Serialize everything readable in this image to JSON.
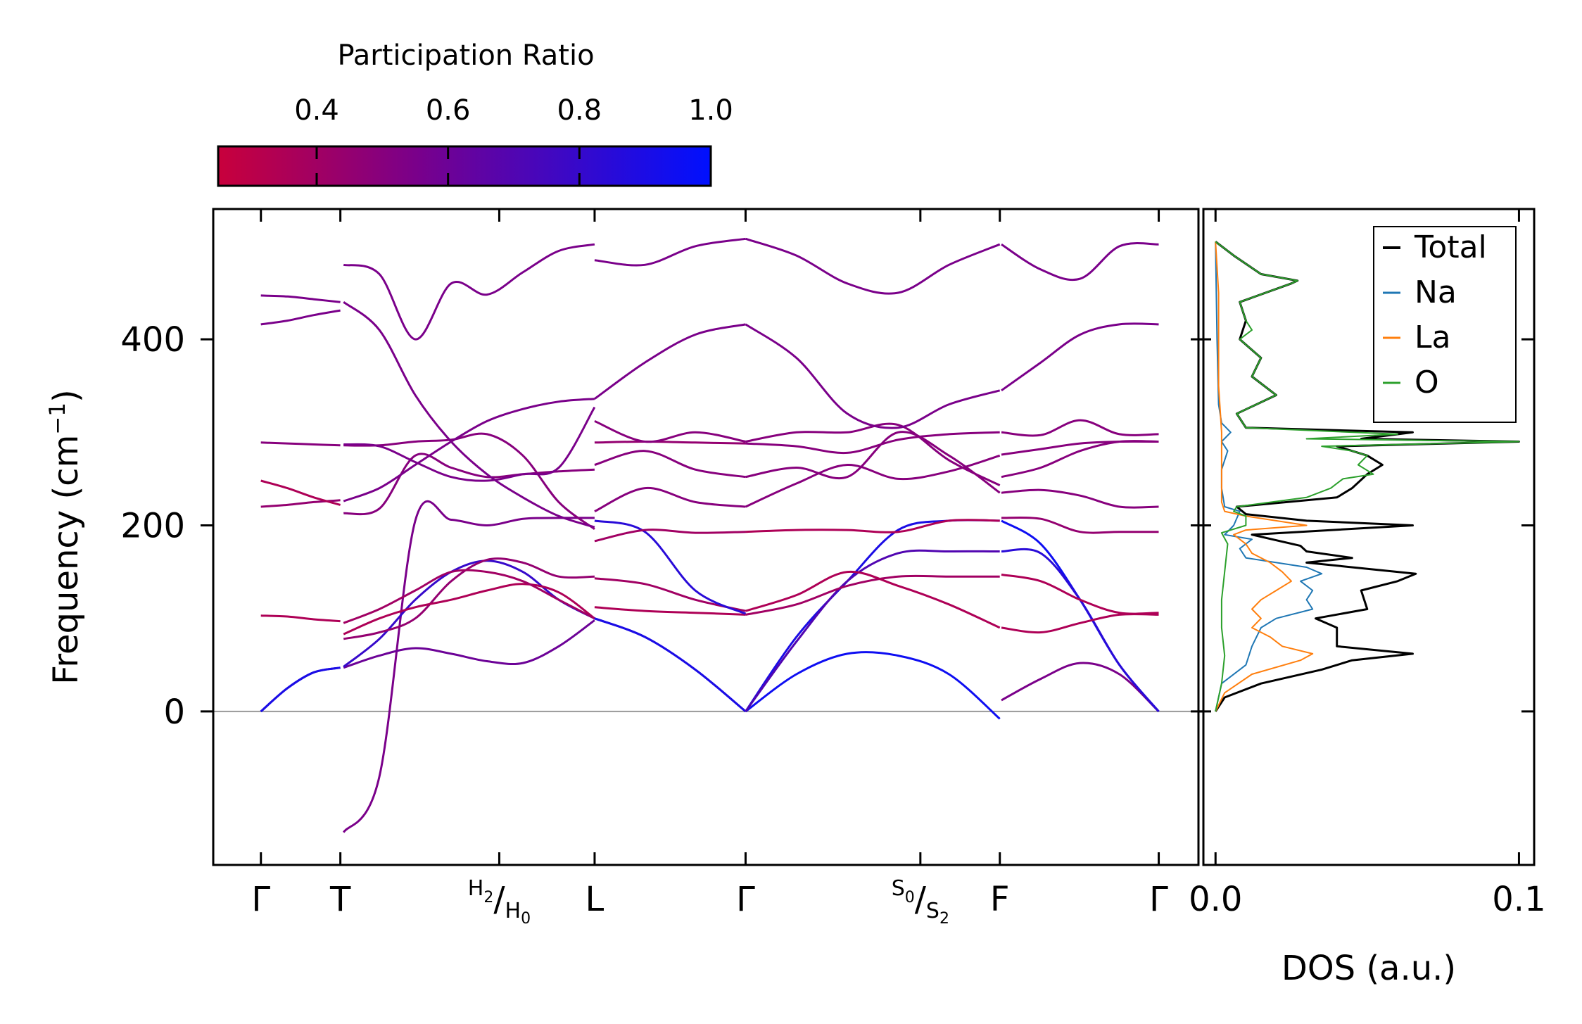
{
  "colorbar": {
    "label": "Participation Ratio",
    "tick_labels": [
      "0.4",
      "0.6",
      "0.8",
      "1.0"
    ],
    "range": [
      0.25,
      1.0
    ],
    "color_low": "#c8003c",
    "color_mid": "#7a008a",
    "color_high": "#0010ff"
  },
  "chart_data": [
    {
      "type": "line",
      "name": "phonon-band-structure",
      "ylabel": "Frequency (cm",
      "ylabel_sup": "−1",
      "ylabel_close": ")",
      "ylim": [
        -165,
        540
      ],
      "yticks": [
        0,
        200,
        400
      ],
      "ytick_labels": [
        "0",
        "200",
        "400"
      ],
      "xlim": [
        -0.3,
        5.9
      ],
      "kpath_labels": [
        {
          "x": 0,
          "main": "Γ"
        },
        {
          "x": 0.5,
          "main": "T"
        },
        {
          "x": 1.5,
          "pre": "H",
          "pre_sub": "2",
          "slash": "/",
          "post": "H",
          "post_sub": "0"
        },
        {
          "x": 2.1,
          "main": "L"
        },
        {
          "x": 3.05,
          "main": "Γ"
        },
        {
          "x": 4.15,
          "pre": "S",
          "pre_sub": "0",
          "slash": "/",
          "post": "S",
          "post_sub": "2"
        },
        {
          "x": 4.65,
          "main": "F"
        },
        {
          "x": 5.65,
          "main": "Γ"
        }
      ],
      "segments": [
        {
          "x0": 0,
          "x1": 0.5,
          "bands": [
            {
              "y": [
                0,
                25,
                42,
                47
              ],
              "pr": 0.95
            },
            {
              "y": [
                0,
                25,
                42,
                47
              ],
              "pr": 0.9
            },
            {
              "y": [
                103,
                102,
                99,
                97
              ],
              "pr": 0.35
            },
            {
              "y": [
                220,
                222,
                225,
                227
              ],
              "pr": 0.45
            },
            {
              "y": [
                248,
                240,
                230,
                222
              ],
              "pr": 0.35
            },
            {
              "y": [
                289,
                288,
                287,
                286
              ],
              "pr": 0.5
            },
            {
              "y": [
                416,
                420,
                426,
                431
              ],
              "pr": 0.55
            },
            {
              "y": [
                447,
                446,
                443,
                440
              ],
              "pr": 0.55
            }
          ]
        },
        {
          "x0": 0.52,
          "x1": 2.1,
          "bands": [
            {
              "y": [
                -130,
                -70,
                205,
                206,
                200,
                207,
                208,
                208
              ],
              "pr": 0.55
            },
            {
              "y": [
                47,
                60,
                68,
                62,
                54,
                52,
                70,
                98
              ],
              "pr": 0.6
            },
            {
              "y": [
                48,
                78,
                120,
                150,
                162,
                150,
                120,
                100
              ],
              "pr": 0.8
            },
            {
              "y": [
                78,
                85,
                100,
                140,
                163,
                160,
                145,
                145
              ],
              "pr": 0.45
            },
            {
              "y": [
                83,
                100,
                112,
                120,
                130,
                137,
                128,
                100
              ],
              "pr": 0.35
            },
            {
              "y": [
                95,
                110,
                130,
                150,
                150,
                140,
                120,
                100
              ],
              "pr": 0.4
            },
            {
              "y": [
                213,
                218,
                275,
                262,
                252,
                255,
                258,
                260
              ],
              "pr": 0.5
            },
            {
              "y": [
                286,
                286,
                290,
                292,
                298,
                275,
                225,
                196
              ],
              "pr": 0.5
            },
            {
              "y": [
                226,
                240,
                265,
                290,
                312,
                325,
                333,
                336
              ],
              "pr": 0.55
            },
            {
              "y": [
                287,
                285,
                268,
                252,
                248,
                255,
                262,
                327
              ],
              "pr": 0.55
            },
            {
              "y": [
                440,
                410,
                340,
                290,
                255,
                230,
                210,
                198
              ],
              "pr": 0.55
            },
            {
              "y": [
                480,
                470,
                400,
                460,
                448,
                472,
                495,
                502
              ],
              "pr": 0.55
            }
          ]
        },
        {
          "x0": 2.1,
          "x1": 3.05,
          "bands": [
            {
              "y": [
                100,
                80,
                45,
                0
              ],
              "pr": 0.95
            },
            {
              "y": [
                100,
                80,
                45,
                0
              ],
              "pr": 0.9
            },
            {
              "y": [
                112,
                108,
                106,
                104
              ],
              "pr": 0.35
            },
            {
              "y": [
                143,
                137,
                120,
                108
              ],
              "pr": 0.4
            },
            {
              "y": [
                205,
                193,
                130,
                105
              ],
              "pr": 0.85
            },
            {
              "y": [
                183,
                195,
                192,
                193
              ],
              "pr": 0.4
            },
            {
              "y": [
                215,
                240,
                225,
                220
              ],
              "pr": 0.5
            },
            {
              "y": [
                265,
                280,
                260,
                252
              ],
              "pr": 0.5
            },
            {
              "y": [
                289,
                290,
                289,
                288
              ],
              "pr": 0.45
            },
            {
              "y": [
                312,
                290,
                300,
                290
              ],
              "pr": 0.5
            },
            {
              "y": [
                336,
                375,
                405,
                416
              ],
              "pr": 0.55
            },
            {
              "y": [
                485,
                480,
                500,
                508
              ],
              "pr": 0.55
            }
          ]
        },
        {
          "x0": 3.05,
          "x1": 4.65,
          "bands": [
            {
              "y": [
                0,
                40,
                62,
                60,
                40,
                -8
              ],
              "pr": 0.95
            },
            {
              "y": [
                0,
                80,
                140,
                195,
                205,
                205
              ],
              "pr": 0.9
            },
            {
              "y": [
                0,
                75,
                140,
                170,
                172,
                172
              ],
              "pr": 0.7
            },
            {
              "y": [
                104,
                115,
                135,
                145,
                145,
                145
              ],
              "pr": 0.4
            },
            {
              "y": [
                108,
                125,
                150,
                135,
                115,
                90
              ],
              "pr": 0.35
            },
            {
              "y": [
                193,
                195,
                195,
                193,
                205,
                205
              ],
              "pr": 0.35
            },
            {
              "y": [
                220,
                245,
                265,
                250,
                258,
                275
              ],
              "pr": 0.5
            },
            {
              "y": [
                252,
                262,
                252,
                300,
                275,
                235
              ],
              "pr": 0.5
            },
            {
              "y": [
                288,
                285,
                278,
                292,
                298,
                300
              ],
              "pr": 0.5
            },
            {
              "y": [
                290,
                300,
                300,
                308,
                270,
                243
              ],
              "pr": 0.5
            },
            {
              "y": [
                416,
                380,
                320,
                305,
                330,
                345
              ],
              "pr": 0.55
            },
            {
              "y": [
                508,
                490,
                460,
                450,
                480,
                502
              ],
              "pr": 0.55
            }
          ]
        },
        {
          "x0": 4.66,
          "x1": 5.65,
          "bands": [
            {
              "y": [
                12,
                35,
                52,
                40,
                0
              ],
              "pr": 0.55
            },
            {
              "y": [
                205,
                180,
                120,
                50,
                0
              ],
              "pr": 0.95
            },
            {
              "y": [
                172,
                170,
                120,
                50,
                0
              ],
              "pr": 0.85
            },
            {
              "y": [
                147,
                140,
                120,
                106,
                106
              ],
              "pr": 0.35
            },
            {
              "y": [
                90,
                85,
                95,
                104,
                104
              ],
              "pr": 0.35
            },
            {
              "y": [
                208,
                207,
                193,
                193,
                193
              ],
              "pr": 0.45
            },
            {
              "y": [
                235,
                238,
                232,
                220,
                220
              ],
              "pr": 0.5
            },
            {
              "y": [
                252,
                262,
                280,
                290,
                290
              ],
              "pr": 0.5
            },
            {
              "y": [
                276,
                282,
                288,
                290,
                290
              ],
              "pr": 0.5
            },
            {
              "y": [
                300,
                297,
                313,
                298,
                298
              ],
              "pr": 0.5
            },
            {
              "y": [
                345,
                375,
                405,
                416,
                416
              ],
              "pr": 0.55
            },
            {
              "y": [
                502,
                475,
                465,
                500,
                502
              ],
              "pr": 0.55
            }
          ]
        }
      ]
    },
    {
      "type": "line",
      "name": "density-of-states",
      "xlabel": "DOS (a.u.)",
      "xlim": [
        -0.004,
        0.105
      ],
      "xticks": [
        0.0,
        0.1
      ],
      "xtick_labels": [
        "0.0",
        "0.1"
      ],
      "ylim": [
        -165,
        540
      ],
      "legend_position": "top-right",
      "series": [
        {
          "name": "Total",
          "color": "#000000",
          "width": 3,
          "f": [
            0,
            15,
            30,
            45,
            55,
            62,
            70,
            90,
            100,
            110,
            130,
            140,
            148,
            160,
            165,
            172,
            178,
            190,
            200,
            205,
            212,
            220,
            230,
            240,
            255,
            265,
            275,
            285,
            290,
            293,
            300,
            305,
            320,
            340,
            360,
            380,
            400,
            420,
            440,
            460,
            463,
            470,
            490,
            505
          ],
          "dos": [
            0,
            0.003,
            0.015,
            0.035,
            0.045,
            0.065,
            0.04,
            0.04,
            0.033,
            0.05,
            0.048,
            0.06,
            0.066,
            0.03,
            0.045,
            0.03,
            0.028,
            0.012,
            0.065,
            0.03,
            0.01,
            0.007,
            0.04,
            0.045,
            0.05,
            0.055,
            0.05,
            0.04,
            0.1,
            0.048,
            0.065,
            0.01,
            0.007,
            0.02,
            0.012,
            0.015,
            0.008,
            0.01,
            0.008,
            0.025,
            0.027,
            0.015,
            0.006,
            0
          ]
        },
        {
          "name": "Na",
          "color": "#1f77b4",
          "width": 2,
          "f": [
            0,
            30,
            50,
            70,
            90,
            100,
            110,
            120,
            130,
            140,
            148,
            155,
            165,
            175,
            185,
            190,
            200,
            215,
            220,
            240,
            260,
            280,
            290,
            300,
            310,
            330,
            400,
            505
          ],
          "dos": [
            0,
            0.002,
            0.01,
            0.012,
            0.015,
            0.02,
            0.032,
            0.03,
            0.032,
            0.028,
            0.035,
            0.03,
            0.01,
            0.008,
            0.012,
            0.003,
            0.006,
            0.008,
            0.003,
            0.002,
            0.002,
            0.004,
            0.002,
            0.005,
            0.002,
            0.001,
            0.0005,
            0
          ]
        },
        {
          "name": "La",
          "color": "#ff7f0e",
          "width": 2,
          "f": [
            0,
            20,
            40,
            55,
            62,
            70,
            80,
            90,
            100,
            110,
            120,
            130,
            140,
            150,
            160,
            170,
            180,
            190,
            195,
            200,
            210,
            215,
            225,
            240,
            280,
            300,
            350,
            400,
            450,
            505
          ],
          "dos": [
            0,
            0.003,
            0.012,
            0.028,
            0.032,
            0.022,
            0.018,
            0.012,
            0.015,
            0.012,
            0.015,
            0.02,
            0.025,
            0.022,
            0.018,
            0.012,
            0.01,
            0.006,
            0.01,
            0.03,
            0.01,
            0.003,
            0.002,
            0.002,
            0.002,
            0.002,
            0.001,
            0.001,
            0.001,
            0
          ]
        },
        {
          "name": "O",
          "color": "#2ca02c",
          "width": 2,
          "f": [
            0,
            30,
            60,
            90,
            120,
            150,
            180,
            192,
            200,
            210,
            215,
            220,
            230,
            240,
            250,
            255,
            265,
            275,
            280,
            285,
            290,
            293,
            298,
            305,
            320,
            340,
            360,
            380,
            400,
            410,
            420,
            440,
            460,
            463,
            470,
            490,
            505
          ],
          "dos": [
            0,
            0.002,
            0.003,
            0.002,
            0.002,
            0.003,
            0.004,
            0.002,
            0.01,
            0.01,
            0.006,
            0.007,
            0.03,
            0.038,
            0.042,
            0.052,
            0.047,
            0.05,
            0.045,
            0.035,
            0.1,
            0.03,
            0.06,
            0.01,
            0.007,
            0.02,
            0.012,
            0.015,
            0.008,
            0.012,
            0.01,
            0.008,
            0.025,
            0.027,
            0.015,
            0.006,
            0
          ]
        }
      ]
    }
  ]
}
